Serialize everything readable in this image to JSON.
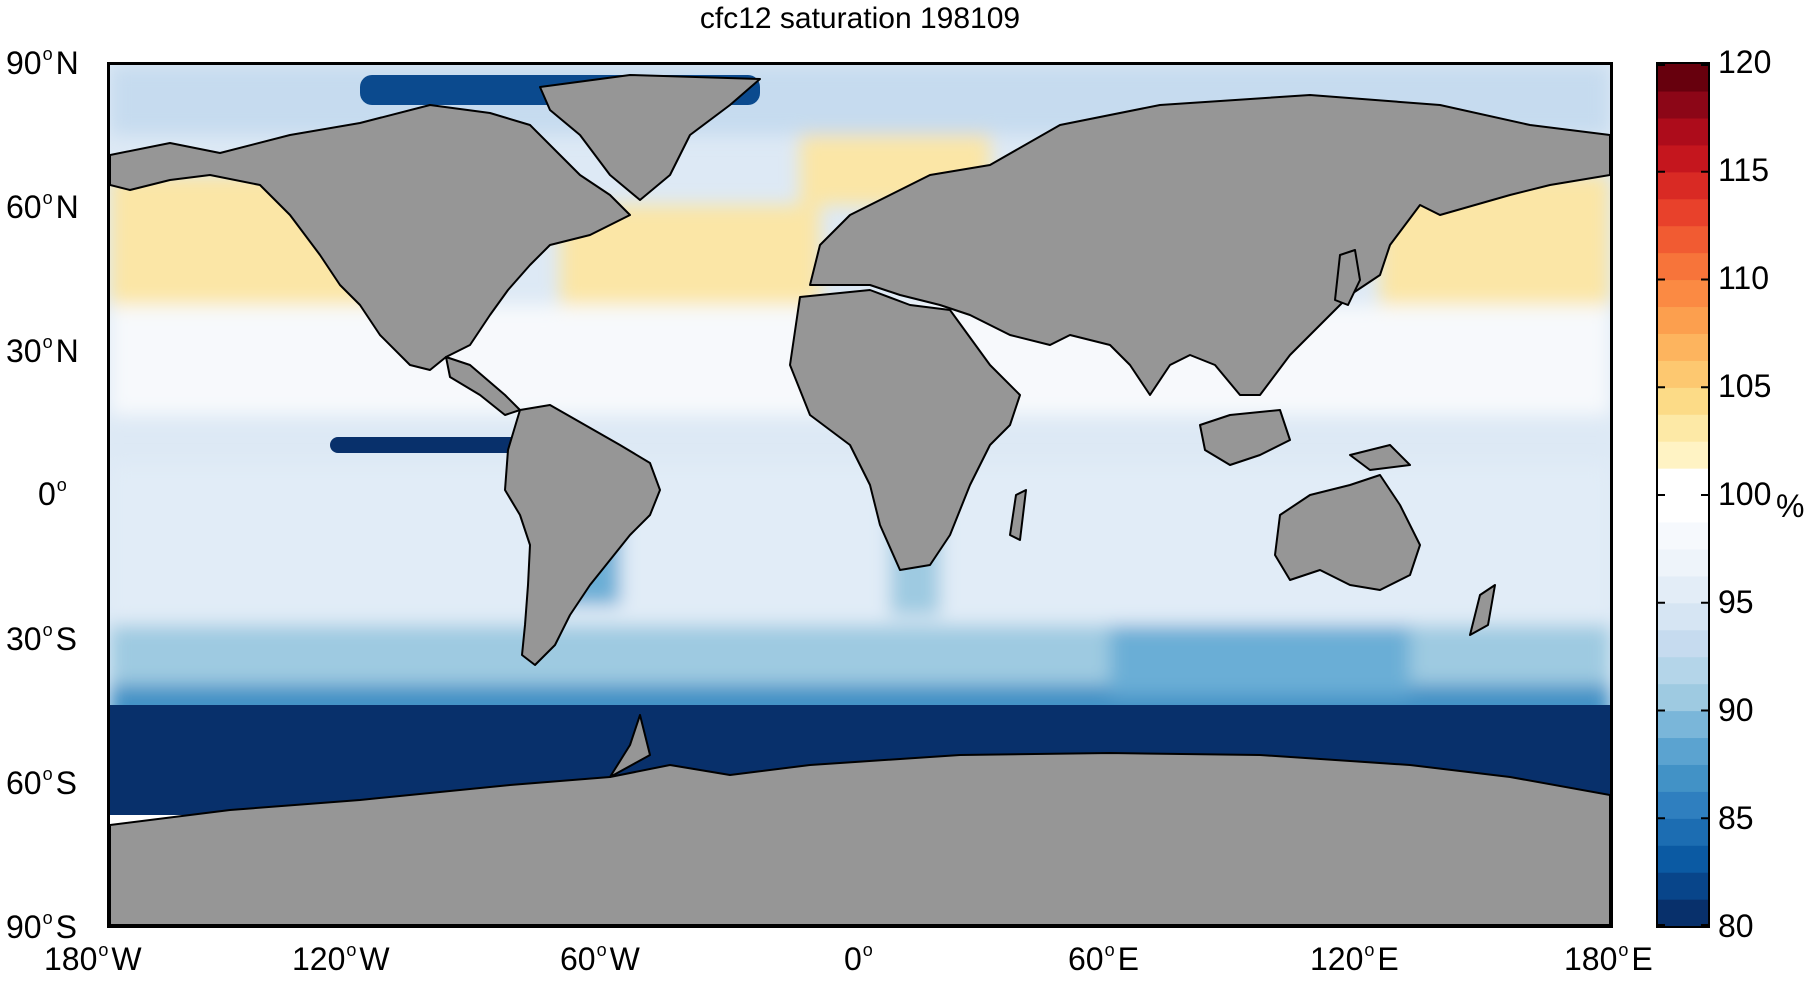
{
  "title": "cfc12 saturation 198109",
  "axes": {
    "lat_labels": [
      {
        "value": 90,
        "num": "90",
        "hem": "N"
      },
      {
        "value": 60,
        "num": "60",
        "hem": "N"
      },
      {
        "value": 30,
        "num": "30",
        "hem": "N"
      },
      {
        "value": 0,
        "num": "0",
        "hem": ""
      },
      {
        "value": -30,
        "num": "30",
        "hem": "S"
      },
      {
        "value": -60,
        "num": "60",
        "hem": "S"
      },
      {
        "value": -90,
        "num": "90",
        "hem": "S"
      }
    ],
    "lon_labels": [
      {
        "value": -180,
        "num": "180",
        "hem": "W"
      },
      {
        "value": -120,
        "num": "120",
        "hem": "W"
      },
      {
        "value": -60,
        "num": "60",
        "hem": "W"
      },
      {
        "value": 0,
        "num": "0",
        "hem": ""
      },
      {
        "value": 60,
        "num": "60",
        "hem": "E"
      },
      {
        "value": 120,
        "num": "120",
        "hem": "E"
      },
      {
        "value": 180,
        "num": "180",
        "hem": "E"
      }
    ]
  },
  "colorbar": {
    "min": 80,
    "max": 120,
    "ticks": [
      "80",
      "85",
      "90",
      "95",
      "100",
      "105",
      "110",
      "115",
      "120"
    ],
    "unit": "%",
    "low_color": "#08306b",
    "mid_color": "#ffffff",
    "high_color": "#67000d"
  },
  "colors": {
    "land": "#969696",
    "coastline": "#000000",
    "ocean_base": "#dde9f5"
  }
}
